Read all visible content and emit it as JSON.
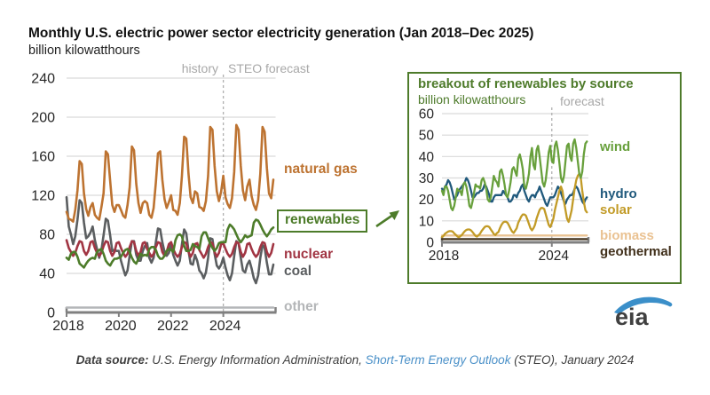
{
  "page": {
    "title": "Monthly U.S. electric power sector electricity generation (Jan 2018–Dec 2025)",
    "units": "billion kilowatthours"
  },
  "footer": {
    "label": "Data source:",
    "org": " U.S. Energy Information Administration, ",
    "link": "Short-Term Energy Outlook",
    "rest": " (STEO), January 2024"
  },
  "logo": {
    "text": "eia"
  },
  "colors": {
    "gridline": "#d9d9d9",
    "axis": "#808080",
    "dashed": "#b0b0b0",
    "annotation": "#a8a8a8",
    "tick_label": "#262626",
    "inset_green": "#4e7b2b",
    "footer_text": "#3f3f3f",
    "footer_link": "#4a90c8",
    "logo_blue": "#3b8fc9",
    "logo_text": "#404040"
  },
  "chart_data": [
    {
      "type": "line",
      "title": "Monthly U.S. electric power sector electricity generation (Jan 2018–Dec 2025)",
      "units": "billion kilowatthours",
      "x_range": [
        2018,
        2026
      ],
      "points_per_year": 12,
      "ylim": [
        0,
        240
      ],
      "yticks": [
        0,
        40,
        80,
        120,
        160,
        200,
        240
      ],
      "xticks": [
        2018,
        2020,
        2022,
        2024
      ],
      "forecast_start": 2024,
      "annotations": {
        "history": "history",
        "forecast": "STEO forecast"
      },
      "legend_position": "right-of-lines",
      "grid": true,
      "series": [
        {
          "name": "other",
          "label": "other",
          "color": "#b4b6b8",
          "constant": 5
        },
        {
          "name": "coal",
          "label": "coal",
          "color": "#5b5e60",
          "values": [
            118,
            88,
            80,
            70,
            78,
            95,
            115,
            112,
            92,
            76,
            78,
            82,
            88,
            74,
            65,
            56,
            64,
            79,
            96,
            94,
            79,
            63,
            64,
            63,
            63,
            53,
            45,
            38,
            43,
            58,
            73,
            73,
            59,
            53,
            53,
            63,
            68,
            71,
            56,
            51,
            56,
            72,
            86,
            85,
            72,
            62,
            58,
            61,
            70,
            59,
            53,
            48,
            53,
            70,
            85,
            81,
            63,
            50,
            49,
            59,
            53,
            43,
            40,
            35,
            41,
            56,
            76,
            75,
            60,
            48,
            45,
            49,
            56,
            46,
            38,
            33,
            40,
            58,
            73,
            71,
            56,
            43,
            41,
            49,
            53,
            45,
            35,
            30,
            38,
            56,
            69,
            66,
            51,
            39,
            39,
            49
          ]
        },
        {
          "name": "nuclear",
          "label": "nuclear",
          "color": "#a13543",
          "values": [
            74,
            66,
            62,
            58,
            61,
            68,
            73,
            72,
            63,
            59,
            63,
            72,
            73,
            66,
            61,
            58,
            61,
            68,
            73,
            72,
            63,
            58,
            62,
            71,
            72,
            66,
            61,
            57,
            60,
            67,
            73,
            72,
            63,
            58,
            62,
            71,
            72,
            65,
            61,
            57,
            60,
            67,
            72,
            71,
            62,
            58,
            62,
            70,
            72,
            65,
            60,
            57,
            60,
            67,
            72,
            71,
            62,
            57,
            61,
            70,
            71,
            64,
            60,
            56,
            60,
            67,
            72,
            71,
            62,
            57,
            61,
            70,
            71,
            65,
            60,
            57,
            60,
            67,
            72,
            71,
            62,
            57,
            61,
            70,
            71,
            65,
            60,
            57,
            60,
            67,
            72,
            71,
            62,
            57,
            61,
            70
          ]
        },
        {
          "name": "renewables",
          "label": "renewables",
          "color": "#4d7c2a",
          "values": [
            56,
            54,
            60,
            62,
            62,
            57,
            50,
            48,
            46,
            50,
            53,
            55,
            56,
            55,
            62,
            64,
            65,
            60,
            53,
            50,
            48,
            52,
            55,
            55,
            56,
            57,
            61,
            64,
            65,
            62,
            56,
            52,
            50,
            55,
            60,
            58,
            59,
            58,
            65,
            67,
            67,
            64,
            58,
            55,
            55,
            58,
            63,
            65,
            64,
            62,
            74,
            79,
            80,
            78,
            68,
            63,
            63,
            64,
            70,
            68,
            67,
            65,
            78,
            82,
            82,
            76,
            70,
            66,
            63,
            66,
            71,
            72,
            72,
            72,
            85,
            90,
            88,
            85,
            80,
            75,
            72,
            75,
            79,
            77,
            78,
            79,
            92,
            95,
            94,
            90,
            85,
            81,
            78,
            81,
            85,
            87
          ]
        },
        {
          "name": "natural gas",
          "label": "natural gas",
          "color": "#bd7331",
          "values": [
            103,
            96,
            95,
            93,
            105,
            125,
            155,
            152,
            122,
            106,
            99,
            108,
            112,
            100,
            97,
            95,
            108,
            122,
            165,
            162,
            135,
            110,
            103,
            110,
            110,
            105,
            99,
            97,
            110,
            128,
            170,
            166,
            132,
            112,
            102,
            112,
            114,
            112,
            100,
            97,
            107,
            133,
            163,
            165,
            136,
            116,
            107,
            113,
            120,
            105,
            104,
            100,
            112,
            140,
            180,
            178,
            142,
            118,
            112,
            124,
            122,
            108,
            107,
            104,
            114,
            140,
            190,
            187,
            150,
            124,
            114,
            124,
            140,
            118,
            111,
            107,
            117,
            144,
            192,
            187,
            150,
            125,
            115,
            129,
            136,
            119,
            110,
            105,
            115,
            142,
            190,
            185,
            148,
            122,
            117,
            136
          ]
        }
      ]
    },
    {
      "type": "line",
      "title": "breakout of renewables by source",
      "units": "billion kilowatthours",
      "x_range": [
        2018,
        2026
      ],
      "points_per_year": 12,
      "ylim": [
        0,
        60
      ],
      "yticks": [
        0,
        10,
        20,
        30,
        40,
        50,
        60
      ],
      "xticks": [
        2018,
        2024
      ],
      "forecast_start": 2024,
      "annotations": {
        "forecast": "forecast"
      },
      "legend_position": "right-of-lines",
      "grid": true,
      "series": [
        {
          "name": "biomass",
          "label": "biomass",
          "color": "#eac292",
          "constant": 3.2
        },
        {
          "name": "geothermal",
          "label": "geothermal",
          "color": "#41301b",
          "constant": 1.5
        },
        {
          "name": "hydro",
          "label": "hydro",
          "color": "#20597c",
          "values": [
            25,
            24,
            26,
            27,
            29,
            28,
            26,
            23,
            20,
            21,
            22,
            24,
            25,
            26,
            27,
            28,
            30,
            29,
            27,
            24,
            21,
            21,
            22,
            23,
            23,
            24,
            24,
            25,
            27,
            26,
            24,
            22,
            19,
            19,
            21,
            22,
            22,
            22,
            22,
            22,
            24,
            23,
            22,
            21,
            19,
            19,
            20,
            22,
            22,
            21,
            23,
            24,
            26,
            27,
            24,
            22,
            20,
            19,
            21,
            22,
            22,
            21,
            23,
            24,
            26,
            24,
            22,
            20,
            18,
            17,
            19,
            21,
            21,
            21,
            22,
            24,
            26,
            25,
            23,
            21,
            19,
            18,
            20,
            21,
            22,
            22,
            23,
            25,
            26,
            25,
            23,
            21,
            19,
            18,
            20,
            21
          ]
        },
        {
          "name": "solar",
          "label": "solar",
          "color": "#c29b27",
          "values": [
            2.5,
            3,
            4,
            4.5,
            5,
            5.2,
            5.2,
            5,
            4.2,
            3.5,
            2.8,
            2.4,
            2.8,
            3.4,
            4.4,
            5.2,
            5.8,
            6,
            6,
            5.6,
            4.8,
            3.9,
            3,
            2.7,
            3.3,
            4.1,
            5.3,
            6.2,
            7.1,
            7.5,
            7.5,
            7.1,
            6,
            5,
            3.9,
            3.4,
            4.3,
            4.8,
            6.6,
            8.1,
            9.2,
            9.6,
            9.6,
            9.1,
            7.8,
            6.3,
            5,
            4.4,
            5.5,
            6.6,
            9.1,
            10.6,
            12.1,
            13,
            13,
            12.5,
            10.6,
            8.6,
            6.6,
            5.6,
            6.6,
            8.1,
            11.1,
            13.1,
            15.1,
            16,
            16,
            15.5,
            13.1,
            10.6,
            8.1,
            7.1,
            9,
            11,
            15,
            18,
            21,
            24,
            26,
            24,
            19,
            15,
            11,
            9.5,
            12,
            15,
            20,
            25,
            29,
            31,
            32,
            30,
            24,
            19,
            15,
            14
          ]
        },
        {
          "name": "wind",
          "label": "wind",
          "color": "#68a03c",
          "values": [
            24,
            22,
            26,
            26,
            24,
            20,
            16,
            15,
            17,
            21,
            25,
            24,
            24,
            22,
            27,
            28,
            26,
            22,
            17,
            16,
            19,
            23,
            27,
            26,
            26,
            25,
            29,
            30,
            28,
            25,
            20,
            19,
            21,
            26,
            31,
            29,
            28,
            26,
            33,
            34,
            31,
            27,
            22,
            21,
            24,
            28,
            34,
            35,
            33,
            31,
            39,
            41,
            38,
            34,
            26,
            25,
            28,
            32,
            40,
            44,
            36,
            34,
            43,
            45,
            40,
            34,
            28,
            26,
            29,
            35,
            42,
            45,
            38,
            37,
            45,
            47,
            43,
            37,
            30,
            28,
            31,
            38,
            45,
            46,
            40,
            38,
            46,
            48,
            44,
            38,
            32,
            30,
            33,
            41,
            46,
            47
          ]
        }
      ]
    }
  ]
}
